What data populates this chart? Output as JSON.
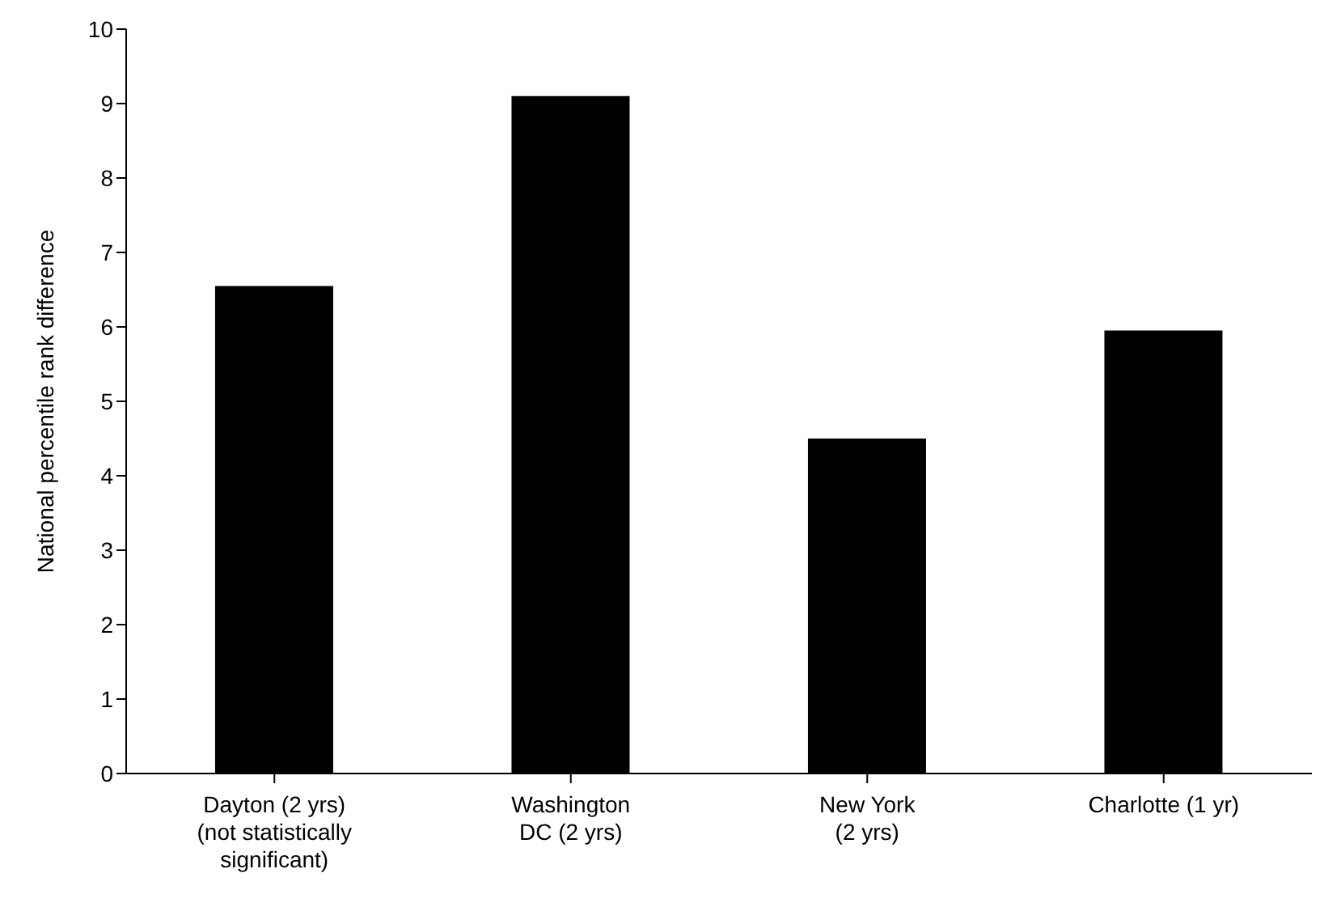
{
  "chart_data": {
    "type": "bar",
    "ylabel": "National percentile rank difference",
    "categories": [
      "Dayton (2 yrs)\n(not statistically\nsignificant)",
      "Washington\nDC (2 yrs)",
      "New York\n(2 yrs)",
      "Charlotte (1 yr)"
    ],
    "values": [
      6.55,
      9.1,
      4.5,
      5.95
    ],
    "color": "#000000",
    "ylim": [
      0,
      10
    ],
    "yticks": [
      0,
      1,
      2,
      3,
      4,
      5,
      6,
      7,
      8,
      9,
      10
    ],
    "grid": false
  }
}
